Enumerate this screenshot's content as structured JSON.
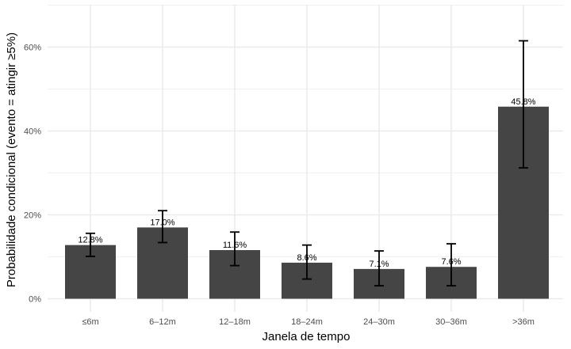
{
  "chart_data": {
    "type": "bar",
    "title": "",
    "xlabel": "Janela de tempo",
    "ylabel": "Probabilidade condicional (evento = atingir ≥5%)",
    "categories": [
      "≤6m",
      "6–12m",
      "12–18m",
      "18–24m",
      "24–30m",
      "30–36m",
      ">36m"
    ],
    "values": [
      12.8,
      17.0,
      11.6,
      8.6,
      7.1,
      7.6,
      45.8
    ],
    "data_labels": [
      "12.8%",
      "17.0%",
      "11.6%",
      "8.6%",
      "7.1%",
      "7.6%",
      "45.8%"
    ],
    "error_low": [
      10.1,
      13.4,
      7.9,
      4.7,
      3.1,
      3.1,
      31.2
    ],
    "error_high": [
      15.6,
      21.0,
      15.9,
      12.8,
      11.4,
      13.1,
      61.5
    ],
    "ylim": [
      0,
      70
    ],
    "yticks": [
      0,
      20,
      40,
      60
    ],
    "ytick_labels": [
      "0%",
      "20%",
      "40%",
      "60%"
    ],
    "grid": true,
    "bar_color": "#454545",
    "grid_color": "#ebebeb"
  }
}
